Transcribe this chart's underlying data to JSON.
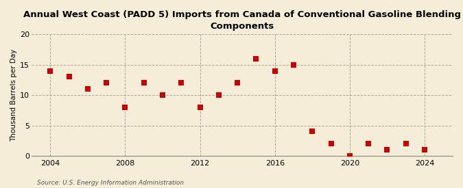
{
  "title": "Annual West Coast (PADD 5) Imports from Canada of Conventional Gasoline Blending\nComponents",
  "ylabel": "Thousand Barrels per Day",
  "source": "Source: U.S. Energy Information Administration",
  "years": [
    2004,
    2005,
    2006,
    2007,
    2008,
    2009,
    2010,
    2011,
    2012,
    2013,
    2014,
    2015,
    2016,
    2017,
    2018,
    2019,
    2020,
    2021,
    2022,
    2023,
    2024
  ],
  "values": [
    14,
    13,
    11,
    12,
    8,
    12,
    10,
    12,
    8,
    10,
    12,
    16,
    14,
    15,
    4,
    2,
    0,
    2,
    1,
    2,
    1
  ],
  "marker_color": "#cc0000",
  "background_color": "#f5edd8",
  "plot_background": "#f5edd8",
  "grid_color": "#b0a898",
  "ylim": [
    0,
    20
  ],
  "yticks": [
    0,
    5,
    10,
    15,
    20
  ],
  "xticks": [
    2004,
    2008,
    2012,
    2016,
    2020,
    2024
  ],
  "xlim": [
    2003.0,
    2025.5
  ],
  "marker_size": 28,
  "title_fontsize": 9.5,
  "ylabel_fontsize": 7.5,
  "tick_fontsize": 8,
  "source_fontsize": 6.5
}
